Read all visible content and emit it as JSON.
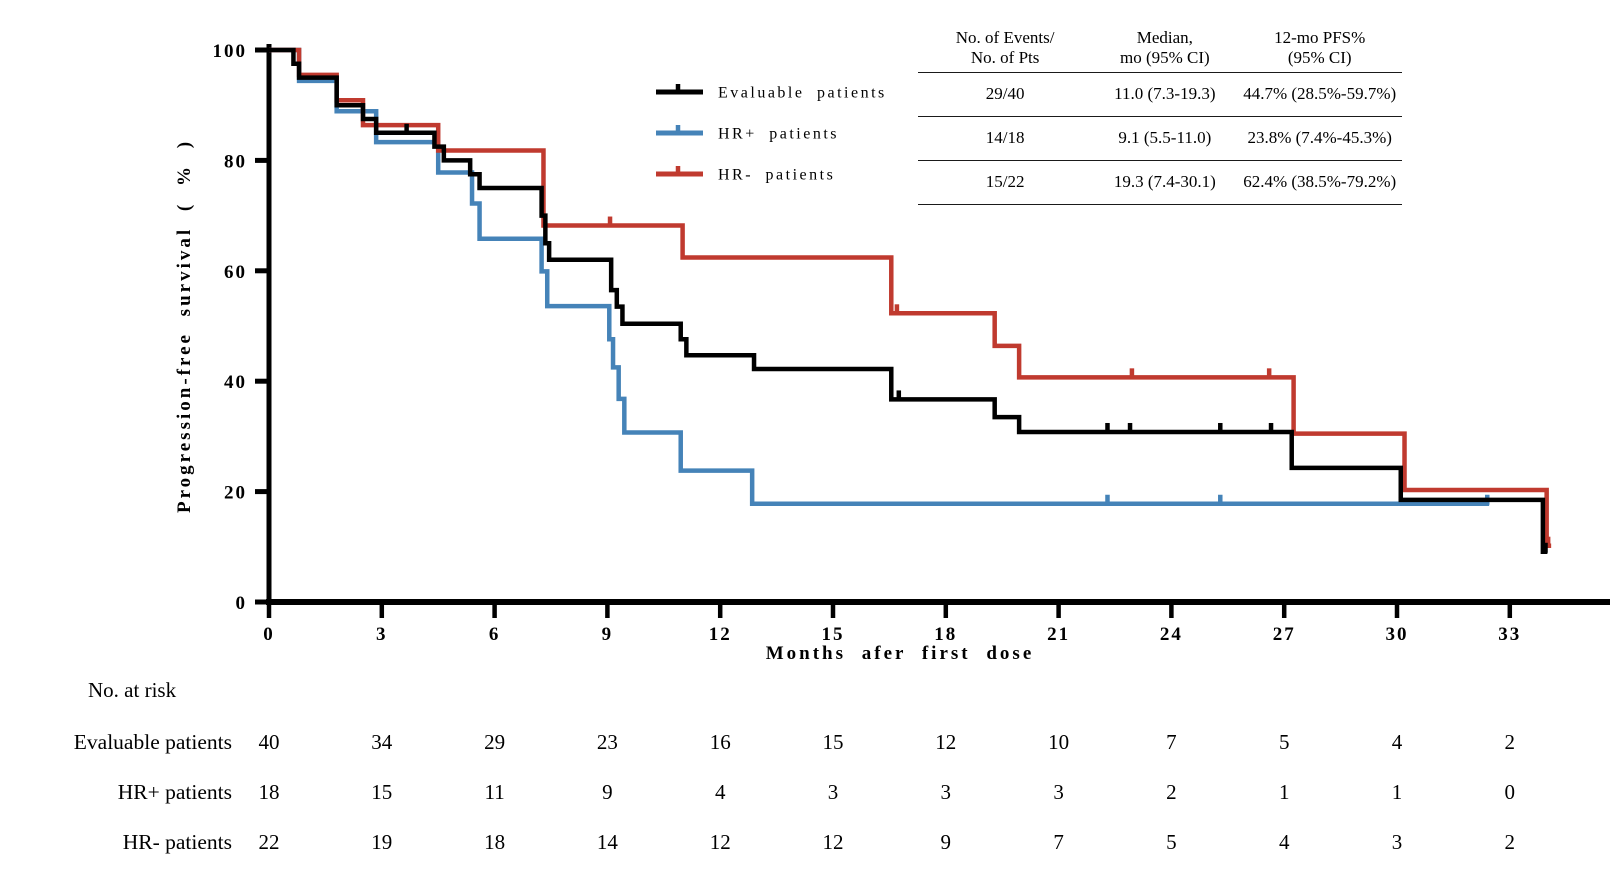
{
  "y_axis": {
    "label": "Progression-free survival ( % )",
    "ticks": [
      0,
      20,
      40,
      60,
      80,
      100
    ],
    "range": [
      0,
      100
    ]
  },
  "x_axis": {
    "label": "Months afer first dose",
    "ticks": [
      0,
      3,
      6,
      9,
      12,
      15,
      18,
      21,
      24,
      27,
      30,
      33
    ],
    "range": [
      0,
      35.6
    ]
  },
  "legend": [
    {
      "label": "Evaluable patients",
      "color": "#000000"
    },
    {
      "label": "HR+ patients",
      "color": "#4583B8"
    },
    {
      "label": "HR- patients",
      "color": "#C03A2F"
    }
  ],
  "summary_table": {
    "col_headers": [
      "No. of Events/\nNo. of Pts",
      "Median,\nmo (95% CI)",
      "12-mo PFS%\n(95% CI)"
    ],
    "rows": [
      [
        "29/40",
        "11.0 (7.3-19.3)",
        "44.7% (28.5%-59.7%)"
      ],
      [
        "14/18",
        "9.1 (5.5-11.0)",
        "23.8% (7.4%-45.3%)"
      ],
      [
        "15/22",
        "19.3 (7.4-30.1)",
        "62.4% (38.5%-79.2%)"
      ]
    ]
  },
  "chart_data": {
    "type": "line",
    "subtype": "kaplan-meier-step",
    "title": "",
    "xlabel": "Months afer first dose",
    "ylabel": "Progression-free survival ( % )",
    "xlim": [
      0,
      35.6
    ],
    "ylim": [
      0,
      100
    ],
    "grid": false,
    "legend_position": "upper-center-left",
    "series": [
      {
        "name": "Evaluable patients",
        "color": "#000000",
        "n_events_over_n_pts": "29/40",
        "median_mo_95ci": "11.0 (7.3-19.3)",
        "pfs_12mo_95ci": "44.7% (28.5%-59.7%)",
        "steps": [
          [
            0,
            100
          ],
          [
            0.65,
            97.5
          ],
          [
            0.8,
            95
          ],
          [
            1.8,
            90
          ],
          [
            2.5,
            87.5
          ],
          [
            2.85,
            85
          ],
          [
            4.4,
            82.5
          ],
          [
            4.65,
            80
          ],
          [
            5.35,
            77.5
          ],
          [
            5.6,
            75
          ],
          [
            7.25,
            70
          ],
          [
            7.35,
            65
          ],
          [
            7.45,
            62
          ],
          [
            9.1,
            56.5
          ],
          [
            9.25,
            53.5
          ],
          [
            9.4,
            50.4
          ],
          [
            10.95,
            47.6
          ],
          [
            11.1,
            44.7
          ],
          [
            12.9,
            42.2
          ],
          [
            16.55,
            36.7
          ],
          [
            19.3,
            33.5
          ],
          [
            19.95,
            30.8
          ],
          [
            27.2,
            24.3
          ],
          [
            30.1,
            18.5
          ],
          [
            33.88,
            9.1
          ]
        ],
        "end_t": 34.0,
        "censor_marks": [
          [
            3.66,
            85
          ],
          [
            16.75,
            36.7
          ],
          [
            22.3,
            30.8
          ],
          [
            22.9,
            30.8
          ],
          [
            25.3,
            30.8
          ],
          [
            26.65,
            30.8
          ],
          [
            33.95,
            9.1
          ]
        ]
      },
      {
        "name": "HR+ patients",
        "color": "#4583B8",
        "n_events_over_n_pts": "14/18",
        "median_mo_95ci": "9.1 (5.5-11.0)",
        "pfs_12mo_95ci": "23.8% (7.4%-45.3%)",
        "steps": [
          [
            0,
            100
          ],
          [
            0.8,
            94.4
          ],
          [
            1.8,
            88.9
          ],
          [
            2.85,
            83.3
          ],
          [
            4.5,
            77.8
          ],
          [
            5.4,
            72.2
          ],
          [
            5.6,
            65.8
          ],
          [
            7.25,
            59.9
          ],
          [
            7.4,
            53.6
          ],
          [
            9.05,
            47.6
          ],
          [
            9.15,
            42.5
          ],
          [
            9.3,
            36.8
          ],
          [
            9.45,
            30.7
          ],
          [
            10.95,
            23.8
          ],
          [
            12.85,
            17.8
          ]
        ],
        "end_t": 32.45,
        "censor_marks": [
          [
            22.3,
            17.8
          ],
          [
            25.3,
            17.8
          ],
          [
            32.4,
            17.8
          ]
        ]
      },
      {
        "name": "HR- patients",
        "color": "#C03A2F",
        "n_events_over_n_pts": "15/22",
        "median_mo_95ci": "19.3 (7.4-30.1)",
        "pfs_12mo_95ci": "62.4% (38.5%-79.2%)",
        "steps": [
          [
            0,
            100
          ],
          [
            0.8,
            95.5
          ],
          [
            1.8,
            90.9
          ],
          [
            2.5,
            86.4
          ],
          [
            4.5,
            81.8
          ],
          [
            7.3,
            68.2
          ],
          [
            11.0,
            62.4
          ],
          [
            16.55,
            52.3
          ],
          [
            19.3,
            46.4
          ],
          [
            19.95,
            40.7
          ],
          [
            27.25,
            30.5
          ],
          [
            30.2,
            20.3
          ],
          [
            33.98,
            10.2
          ]
        ],
        "end_t": 34.1,
        "censor_marks": [
          [
            9.07,
            68.2
          ],
          [
            16.7,
            52.3
          ],
          [
            22.95,
            40.7
          ],
          [
            26.6,
            40.7
          ],
          [
            34.02,
            10.2
          ]
        ]
      }
    ]
  },
  "risk_table": {
    "title": "No. at risk",
    "timepoints": [
      0,
      3,
      6,
      9,
      12,
      15,
      18,
      21,
      24,
      27,
      30,
      33
    ],
    "rows": [
      {
        "label": "Evaluable patients",
        "counts": [
          40,
          34,
          29,
          23,
          16,
          15,
          12,
          10,
          7,
          5,
          4,
          2
        ]
      },
      {
        "label": "HR+ patients",
        "counts": [
          18,
          15,
          11,
          9,
          4,
          3,
          3,
          3,
          2,
          1,
          1,
          0
        ]
      },
      {
        "label": "HR- patients",
        "counts": [
          22,
          19,
          18,
          14,
          12,
          12,
          9,
          7,
          5,
          4,
          3,
          2
        ]
      }
    ]
  }
}
